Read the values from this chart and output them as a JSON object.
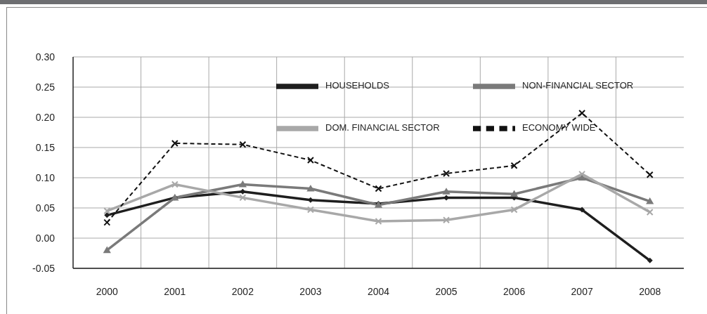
{
  "chart_data": {
    "type": "line",
    "categories": [
      "2000",
      "2001",
      "2002",
      "2003",
      "2004",
      "2005",
      "2006",
      "2007",
      "2008"
    ],
    "series": [
      {
        "name": "HOUSEHOLDS",
        "color": "#1e1e1e",
        "marker": "diamond",
        "line_style": "solid",
        "values": [
          0.038,
          0.067,
          0.077,
          0.063,
          0.057,
          0.067,
          0.067,
          0.047,
          -0.037
        ]
      },
      {
        "name": "NON-FINANCIAL SECTOR",
        "color": "#7a7a7a",
        "marker": "triangle",
        "line_style": "solid",
        "values": [
          -0.02,
          0.067,
          0.089,
          0.082,
          0.055,
          0.077,
          0.073,
          0.1,
          0.061
        ]
      },
      {
        "name": "DOM. FINANCIAL SECTOR",
        "color": "#a8a8a8",
        "marker": "cross",
        "line_style": "solid",
        "values": [
          0.045,
          0.089,
          0.067,
          0.047,
          0.028,
          0.03,
          0.047,
          0.106,
          0.043
        ]
      },
      {
        "name": "ECONOMY WIDE",
        "color": "#111111",
        "marker": "cross",
        "line_style": "dashed",
        "values": [
          0.026,
          0.157,
          0.155,
          0.129,
          0.082,
          0.107,
          0.12,
          0.207,
          0.105
        ]
      }
    ],
    "ylim": [
      -0.05,
      0.3
    ],
    "yticks": [
      {
        "value": -0.05,
        "label": "-0.05"
      },
      {
        "value": 0,
        "label": "0.00"
      },
      {
        "value": 0.05,
        "label": "0.05"
      },
      {
        "value": 0.1,
        "label": "0.10"
      },
      {
        "value": 0.15,
        "label": "0.15"
      },
      {
        "value": 0.2,
        "label": "0.20"
      },
      {
        "value": 0.25,
        "label": "0.25"
      },
      {
        "value": 0.3,
        "label": "0.30"
      }
    ],
    "grid": true,
    "legend": "top right"
  }
}
